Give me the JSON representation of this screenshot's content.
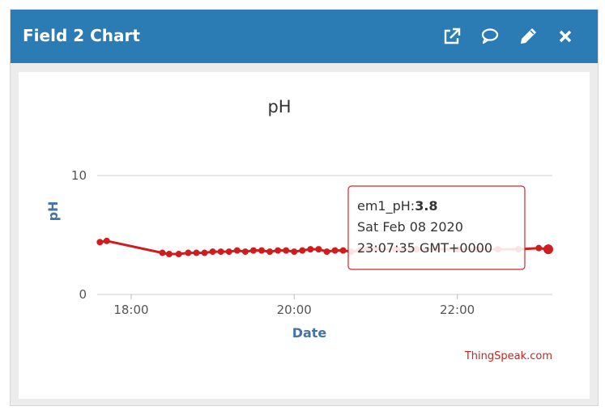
{
  "window": {
    "title": "Field 2 Chart",
    "icons": [
      "external-link-icon",
      "comment-icon",
      "pencil-icon",
      "close-icon"
    ],
    "header_color": "#2b7cb5"
  },
  "chart_data": {
    "type": "line",
    "title": "pH",
    "xlabel": "Date",
    "ylabel": "pH",
    "ylim": [
      0,
      10
    ],
    "yticks": [
      "0",
      "10"
    ],
    "xticks": [
      "18:00",
      "20:00",
      "22:00"
    ],
    "x_range": [
      "17:35",
      "23:10"
    ],
    "grid": true,
    "line_color": "#d01c1c",
    "series": [
      {
        "name": "em1_pH",
        "points": [
          {
            "x": "17:37",
            "y": 4.4
          },
          {
            "x": "17:42",
            "y": 4.5
          },
          {
            "x": "18:23",
            "y": 3.5
          },
          {
            "x": "18:28",
            "y": 3.4
          },
          {
            "x": "18:35",
            "y": 3.4
          },
          {
            "x": "18:42",
            "y": 3.5
          },
          {
            "x": "18:48",
            "y": 3.5
          },
          {
            "x": "18:54",
            "y": 3.5
          },
          {
            "x": "19:00",
            "y": 3.6
          },
          {
            "x": "19:06",
            "y": 3.6
          },
          {
            "x": "19:12",
            "y": 3.6
          },
          {
            "x": "19:18",
            "y": 3.7
          },
          {
            "x": "19:24",
            "y": 3.6
          },
          {
            "x": "19:30",
            "y": 3.7
          },
          {
            "x": "19:36",
            "y": 3.7
          },
          {
            "x": "19:42",
            "y": 3.6
          },
          {
            "x": "19:48",
            "y": 3.7
          },
          {
            "x": "19:54",
            "y": 3.7
          },
          {
            "x": "20:00",
            "y": 3.6
          },
          {
            "x": "20:06",
            "y": 3.7
          },
          {
            "x": "20:12",
            "y": 3.8
          },
          {
            "x": "20:18",
            "y": 3.8
          },
          {
            "x": "20:24",
            "y": 3.6
          },
          {
            "x": "20:30",
            "y": 3.7
          },
          {
            "x": "20:36",
            "y": 3.7
          },
          {
            "x": "20:42",
            "y": 3.6
          },
          {
            "x": "20:48",
            "y": 3.7
          },
          {
            "x": "20:54",
            "y": 3.8
          },
          {
            "x": "21:00",
            "y": 3.8
          },
          {
            "x": "21:15",
            "y": 3.8
          },
          {
            "x": "21:30",
            "y": 3.8
          },
          {
            "x": "21:45",
            "y": 3.8
          },
          {
            "x": "22:00",
            "y": 3.8
          },
          {
            "x": "22:15",
            "y": 3.8
          },
          {
            "x": "22:30",
            "y": 3.8
          },
          {
            "x": "22:45",
            "y": 3.8
          },
          {
            "x": "23:00",
            "y": 3.9
          },
          {
            "x": "23:07",
            "y": 3.8
          }
        ]
      }
    ],
    "tooltip": {
      "label": "em1_pH:",
      "value": "3.8",
      "line1": "Sat Feb 08 2020",
      "line2": "23:07:35 GMT+0000"
    },
    "credit": "ThingSpeak.com"
  }
}
